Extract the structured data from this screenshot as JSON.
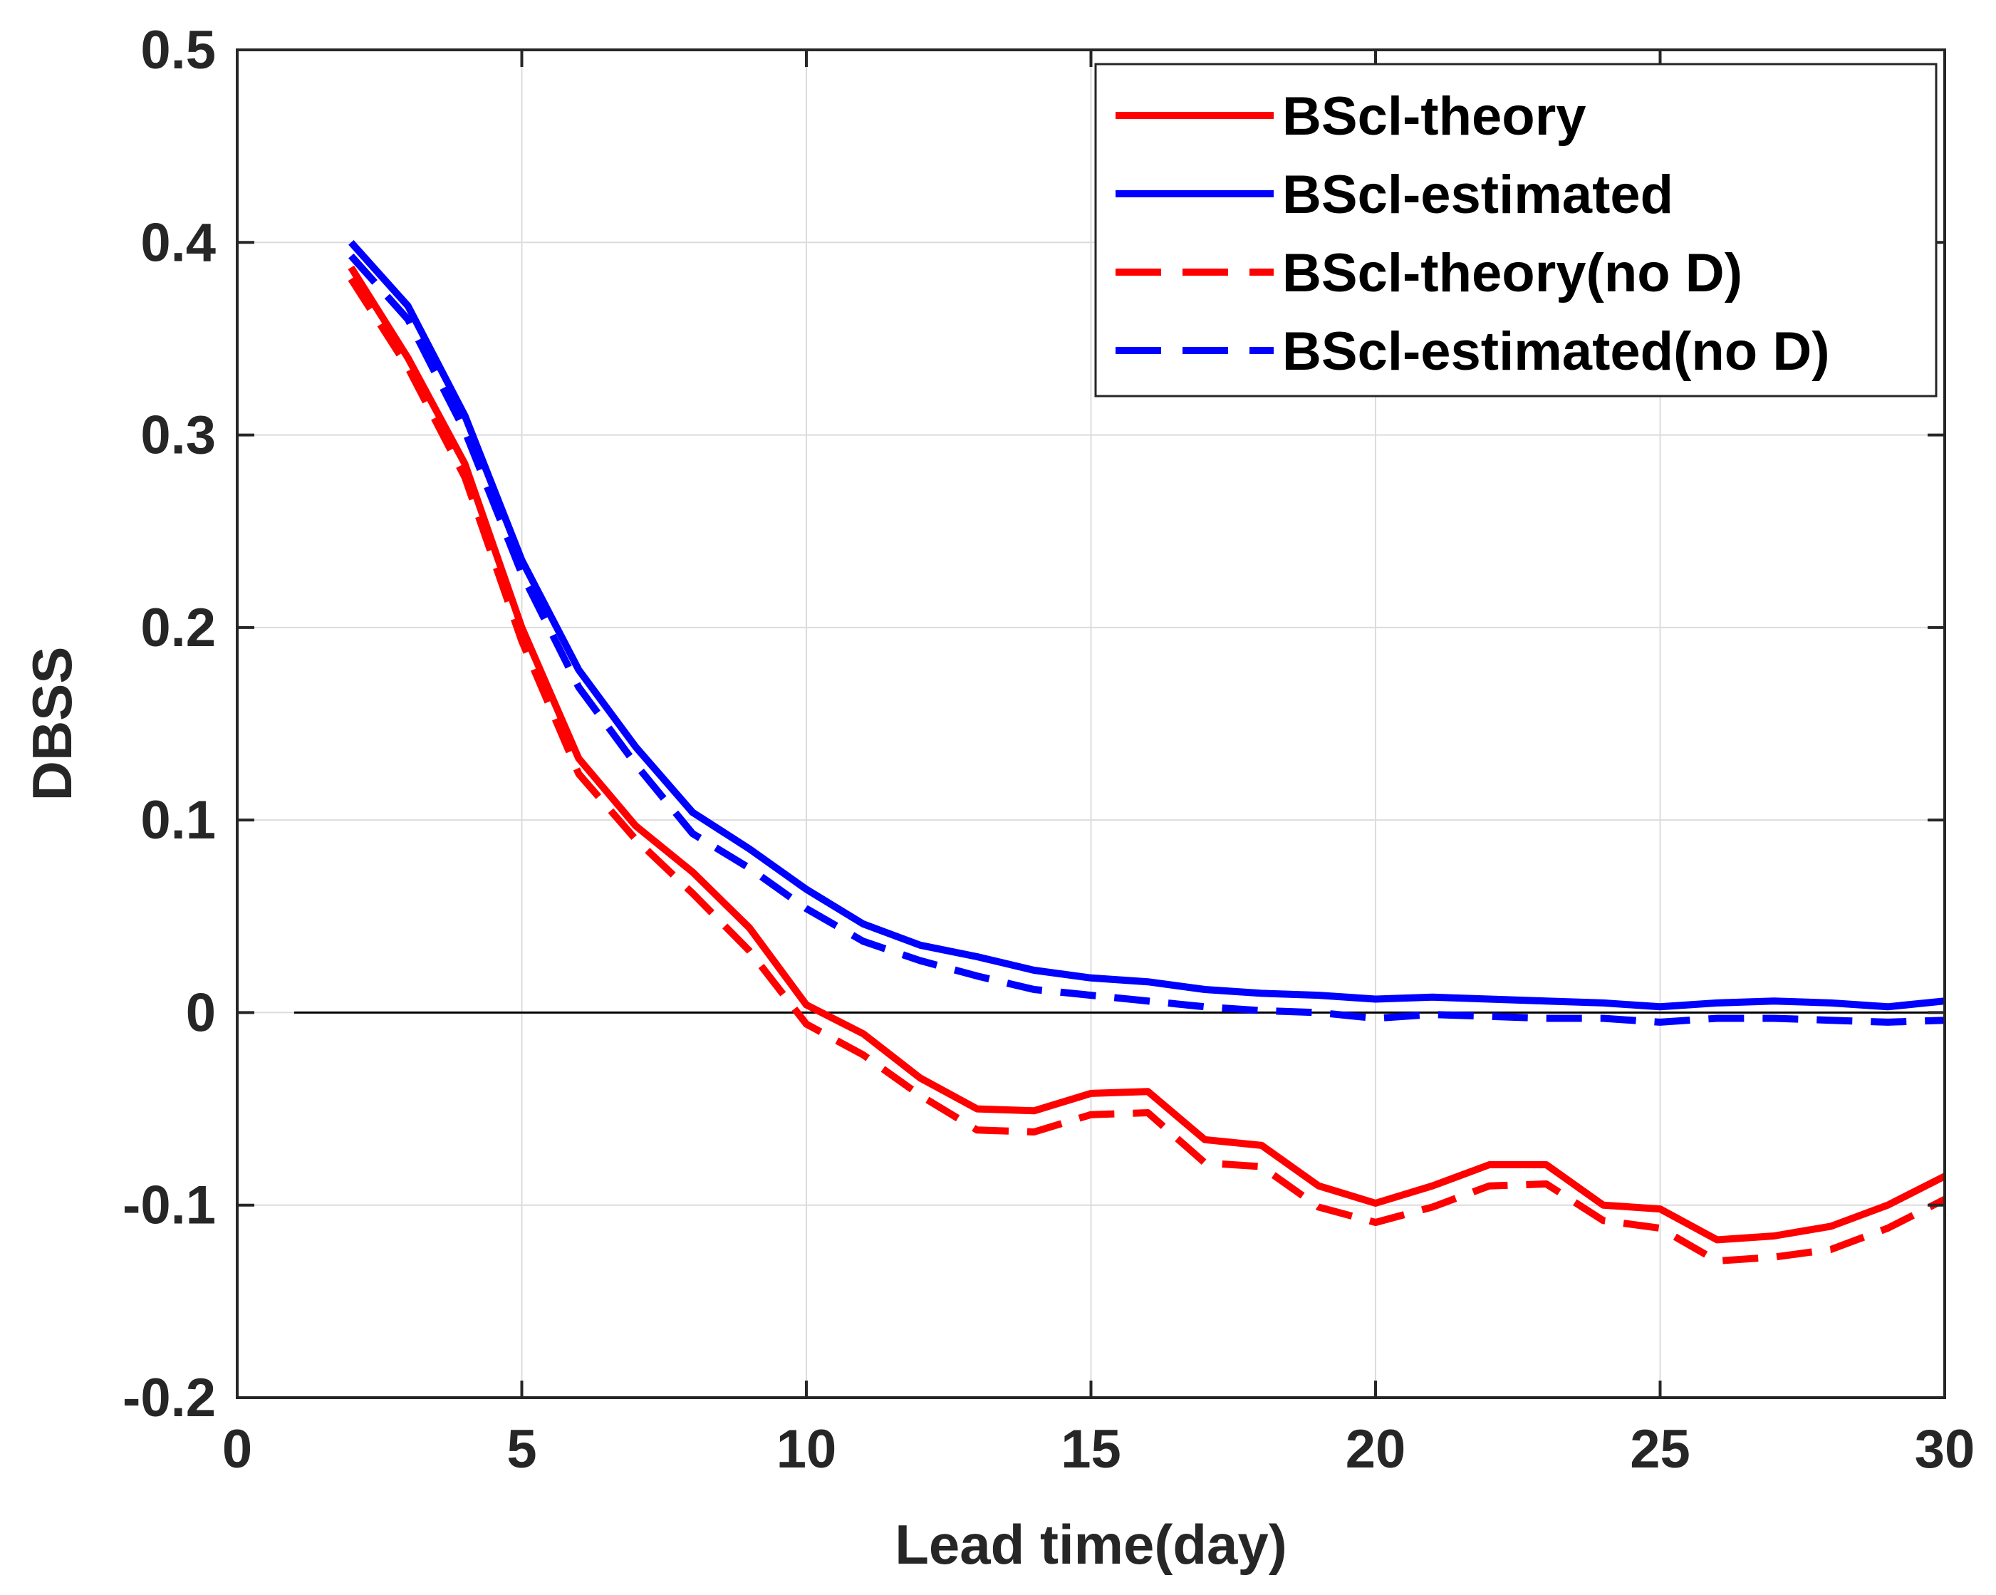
{
  "chart_data": {
    "type": "line",
    "title": "",
    "xlabel": "Lead time(day)",
    "ylabel": "DBSS",
    "xlim": [
      0,
      30
    ],
    "ylim": [
      -0.2,
      0.5
    ],
    "grid": true,
    "zero_line": true,
    "legend_position": "top-right",
    "x_ticks": [
      "0",
      "5",
      "10",
      "15",
      "20",
      "25",
      "30"
    ],
    "y_ticks": [
      "-0.2",
      "-0.1",
      "0",
      "0.1",
      "0.2",
      "0.3",
      "0.4",
      "0.5"
    ],
    "x": [
      2,
      3,
      4,
      5,
      6,
      7,
      8,
      9,
      10,
      11,
      12,
      13,
      14,
      15,
      16,
      17,
      18,
      19,
      20,
      21,
      22,
      23,
      24,
      25,
      26,
      27,
      28,
      29,
      30
    ],
    "series": [
      {
        "name": "BScl-theory",
        "color": "#ff0000",
        "dash": "solid",
        "values": [
          0.387,
          0.34,
          0.285,
          0.2,
          0.132,
          0.097,
          0.073,
          0.044,
          0.004,
          -0.011,
          -0.034,
          -0.05,
          -0.051,
          -0.042,
          -0.041,
          -0.066,
          -0.069,
          -0.09,
          -0.099,
          -0.09,
          -0.079,
          -0.079,
          -0.1,
          -0.102,
          -0.118,
          -0.116,
          -0.111,
          -0.1,
          -0.085
        ]
      },
      {
        "name": "BScl-estimated",
        "color": "#0000ff",
        "dash": "solid",
        "values": [
          0.4,
          0.367,
          0.31,
          0.235,
          0.178,
          0.138,
          0.104,
          0.085,
          0.064,
          0.046,
          0.035,
          0.029,
          0.022,
          0.018,
          0.016,
          0.012,
          0.01,
          0.009,
          0.007,
          0.008,
          0.007,
          0.006,
          0.005,
          0.003,
          0.005,
          0.006,
          0.005,
          0.003,
          0.006
        ]
      },
      {
        "name": "BScl-theory(no D)",
        "color": "#ff0000",
        "dash": "dashed",
        "values": [
          0.381,
          0.335,
          0.278,
          0.193,
          0.124,
          0.09,
          0.062,
          0.032,
          -0.006,
          -0.022,
          -0.043,
          -0.061,
          -0.062,
          -0.053,
          -0.052,
          -0.078,
          -0.08,
          -0.101,
          -0.109,
          -0.101,
          -0.09,
          -0.089,
          -0.108,
          -0.112,
          -0.129,
          -0.127,
          -0.123,
          -0.112,
          -0.097
        ]
      },
      {
        "name": "BScl-estimated(no D)",
        "color": "#0000ff",
        "dash": "dashed",
        "values": [
          0.393,
          0.36,
          0.302,
          0.228,
          0.169,
          0.129,
          0.093,
          0.075,
          0.054,
          0.037,
          0.027,
          0.019,
          0.012,
          0.009,
          0.006,
          0.003,
          0.001,
          0.0,
          -0.003,
          -0.001,
          -0.002,
          -0.003,
          -0.003,
          -0.005,
          -0.003,
          -0.003,
          -0.004,
          -0.005,
          -0.004
        ]
      }
    ]
  }
}
